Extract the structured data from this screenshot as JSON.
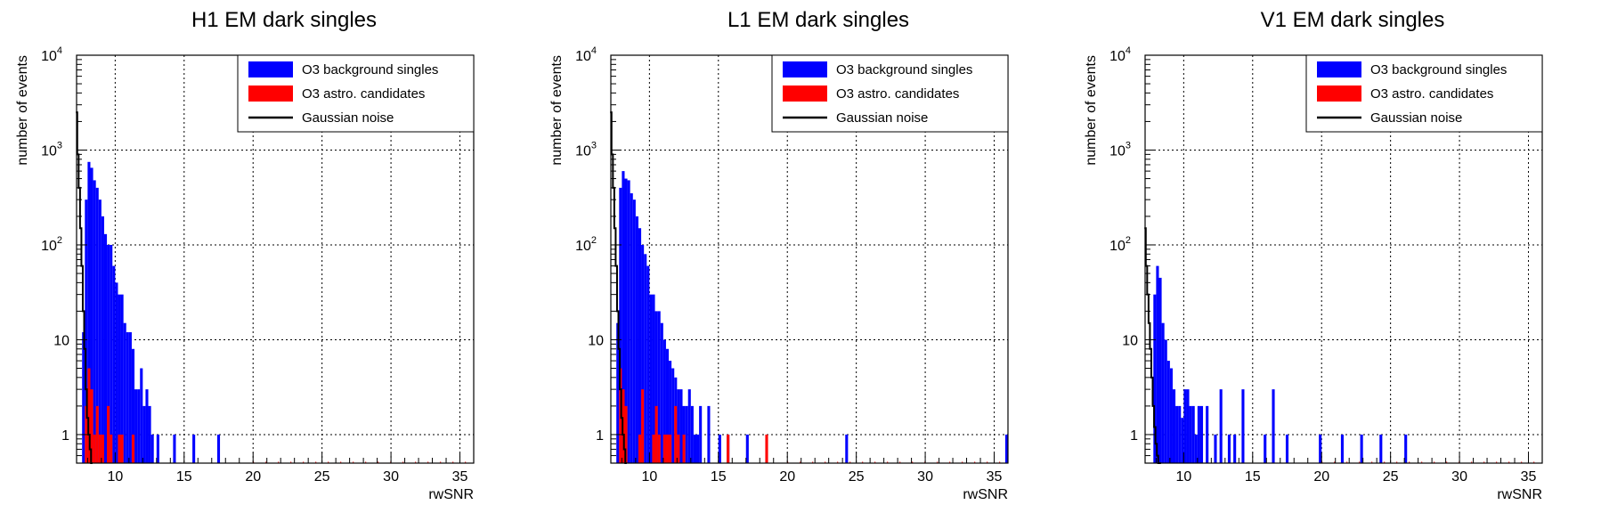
{
  "colors": {
    "background": "#0000ff",
    "astro": "#ff0000",
    "gaussian": "#000000",
    "grid": "#000000"
  },
  "chart_data": [
    {
      "type": "bar",
      "title": "H1 EM dark singles",
      "xlabel": "rwSNR",
      "ylabel": "number of events",
      "xlim": [
        7.2,
        36
      ],
      "ylim": [
        0.5,
        10000
      ],
      "yscale": "log",
      "grid": true,
      "legend_position": "top-right",
      "x_ticks": [
        "10",
        "15",
        "20",
        "25",
        "30",
        "35"
      ],
      "y_ticks": [
        {
          "base": "1",
          "exp": ""
        },
        {
          "base": "10",
          "exp": ""
        },
        {
          "base": "10",
          "exp": "2"
        },
        {
          "base": "10",
          "exp": "3"
        },
        {
          "base": "10",
          "exp": "4"
        }
      ],
      "legend": [
        "O3 background singles",
        "O3 astro. candidates",
        "Gaussian noise"
      ],
      "series": [
        {
          "name": "O3 background singles",
          "x": [
            7.7,
            7.9,
            8.1,
            8.3,
            8.5,
            8.7,
            8.9,
            9.1,
            9.3,
            9.5,
            9.7,
            9.9,
            10.1,
            10.3,
            10.5,
            10.7,
            10.9,
            11.1,
            11.3,
            11.5,
            11.7,
            11.9,
            12.1,
            12.3,
            12.5,
            12.7,
            13.1,
            14.3,
            15.7,
            17.5
          ],
          "values": [
            12,
            300,
            750,
            650,
            480,
            400,
            300,
            200,
            130,
            100,
            100,
            60,
            40,
            30,
            30,
            15,
            12,
            12,
            8,
            3,
            3,
            5,
            2,
            3,
            2,
            1,
            1,
            1,
            1,
            1
          ]
        },
        {
          "name": "O3 astro. candidates",
          "x": [
            7.9,
            8.1,
            8.3,
            8.5,
            8.7,
            8.9,
            9.1,
            9.5,
            9.7,
            10.3,
            10.5,
            11.3
          ],
          "values": [
            2,
            5,
            3,
            1,
            2,
            1,
            1,
            2,
            1,
            1,
            1,
            1
          ]
        },
        {
          "name": "Gaussian noise",
          "x": [
            7.2,
            7.3,
            7.4,
            7.5,
            7.6,
            7.7,
            7.8,
            7.9,
            8.0,
            8.1,
            8.2,
            8.3
          ],
          "values": [
            2500,
            900,
            400,
            150,
            60,
            20,
            8,
            3,
            1.5,
            1,
            0.7,
            0.5
          ]
        }
      ]
    },
    {
      "type": "bar",
      "title": "L1 EM dark singles",
      "xlabel": "rwSNR",
      "ylabel": "number of events",
      "xlim": [
        7.2,
        36
      ],
      "ylim": [
        0.5,
        10000
      ],
      "yscale": "log",
      "grid": true,
      "legend_position": "top-right",
      "x_ticks": [
        "10",
        "15",
        "20",
        "25",
        "30",
        "35"
      ],
      "y_ticks": [
        {
          "base": "1",
          "exp": ""
        },
        {
          "base": "10",
          "exp": ""
        },
        {
          "base": "10",
          "exp": "2"
        },
        {
          "base": "10",
          "exp": "3"
        },
        {
          "base": "10",
          "exp": "4"
        }
      ],
      "legend": [
        "O3 background singles",
        "O3 astro. candidates",
        "Gaussian noise"
      ],
      "series": [
        {
          "name": "O3 background singles",
          "x": [
            7.7,
            7.9,
            8.1,
            8.3,
            8.5,
            8.7,
            8.9,
            9.1,
            9.3,
            9.5,
            9.7,
            9.9,
            10.1,
            10.3,
            10.5,
            10.7,
            10.9,
            11.1,
            11.3,
            11.5,
            11.7,
            11.9,
            12.1,
            12.3,
            12.5,
            12.7,
            12.9,
            13.1,
            13.3,
            13.5,
            13.7,
            14.3,
            15.1,
            15.7,
            17.1,
            24.3,
            35.9
          ],
          "values": [
            15,
            400,
            600,
            500,
            480,
            350,
            300,
            200,
            150,
            100,
            80,
            60,
            30,
            30,
            20,
            20,
            15,
            10,
            8,
            6,
            5,
            4,
            3,
            3,
            2,
            2,
            3,
            2,
            1,
            1,
            2,
            2,
            1,
            1,
            1,
            1,
            1
          ]
        },
        {
          "name": "O3 astro. candidates",
          "x": [
            7.9,
            8.1,
            8.3,
            9.3,
            9.5,
            10.3,
            10.5,
            10.7,
            11.1,
            11.3,
            11.5,
            11.9,
            12.1,
            12.5,
            15.7,
            18.5
          ],
          "values": [
            5,
            3,
            2,
            1,
            3,
            1,
            2,
            1,
            1,
            1,
            1,
            2,
            1,
            1,
            1,
            1
          ]
        },
        {
          "name": "Gaussian noise",
          "x": [
            7.2,
            7.3,
            7.4,
            7.5,
            7.6,
            7.7,
            7.8,
            7.9,
            8.0,
            8.1,
            8.2,
            8.3
          ],
          "values": [
            2500,
            900,
            400,
            150,
            60,
            20,
            8,
            3,
            1.5,
            1,
            0.7,
            0.5
          ]
        }
      ]
    },
    {
      "type": "bar",
      "title": "V1 EM dark singles",
      "xlabel": "rwSNR",
      "ylabel": "number of events",
      "xlim": [
        7.2,
        36
      ],
      "ylim": [
        0.5,
        10000
      ],
      "yscale": "log",
      "grid": true,
      "legend_position": "top-right",
      "x_ticks": [
        "10",
        "15",
        "20",
        "25",
        "30",
        "35"
      ],
      "y_ticks": [
        {
          "base": "1",
          "exp": ""
        },
        {
          "base": "10",
          "exp": ""
        },
        {
          "base": "10",
          "exp": "2"
        },
        {
          "base": "10",
          "exp": "3"
        },
        {
          "base": "10",
          "exp": "4"
        }
      ],
      "legend": [
        "O3 background singles",
        "O3 astro. candidates",
        "Gaussian noise"
      ],
      "series": [
        {
          "name": "O3 background singles",
          "x": [
            7.9,
            8.1,
            8.3,
            8.5,
            8.7,
            8.9,
            9.1,
            9.3,
            9.5,
            9.7,
            9.9,
            10.1,
            10.3,
            10.5,
            10.7,
            10.9,
            11.1,
            11.3,
            11.7,
            12.3,
            12.7,
            13.3,
            13.7,
            14.3,
            15.9,
            16.5,
            17.5,
            19.9,
            21.5,
            22.9,
            24.3,
            26.1
          ],
          "values": [
            30,
            60,
            45,
            15,
            10,
            6,
            5,
            3,
            2,
            2,
            1.5,
            3,
            3,
            2,
            2,
            1,
            2,
            2,
            2,
            1,
            3,
            1,
            1,
            3,
            1,
            3,
            1,
            1,
            1,
            1,
            1,
            1
          ]
        },
        {
          "name": "O3 astro. candidates",
          "x": [],
          "values": []
        },
        {
          "name": "Gaussian noise",
          "x": [
            7.2,
            7.3,
            7.4,
            7.5,
            7.6,
            7.7,
            7.8,
            7.9,
            8.0,
            8.1,
            8.2,
            8.3
          ],
          "values": [
            150,
            60,
            30,
            15,
            8,
            4,
            2,
            1.2,
            0.8,
            0.6,
            0.5,
            0.5
          ]
        }
      ]
    }
  ]
}
